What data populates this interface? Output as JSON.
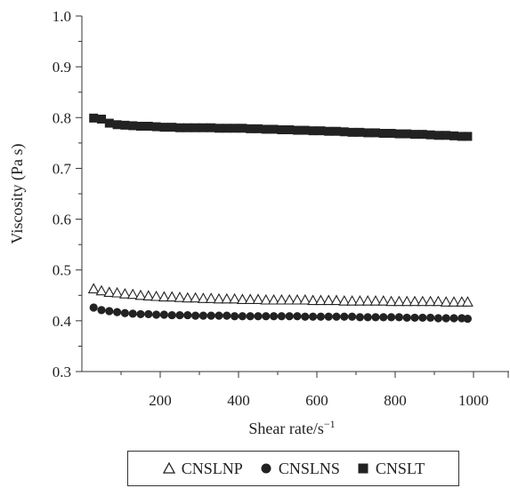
{
  "chart_data": {
    "type": "scatter",
    "title": "",
    "xlabel": "Shear rate/s",
    "xlabel_sup": "−1",
    "ylabel": "Viscosity (Pa s)",
    "xlim": [
      0,
      1000
    ],
    "ylim": [
      0.3,
      1.0
    ],
    "xticks": [
      200,
      400,
      600,
      800,
      1000
    ],
    "yticks": [
      "0.3",
      "0.4",
      "0.5",
      "0.6",
      "0.7",
      "0.8",
      "0.9",
      "1.0"
    ],
    "grid": false,
    "legend_position": "bottom",
    "series": [
      {
        "name": "CNSLNP",
        "marker": "open-triangle",
        "color": "#222222",
        "trendline": true,
        "x": [
          30,
          50,
          70,
          90,
          110,
          130,
          150,
          170,
          190,
          210,
          230,
          250,
          270,
          290,
          310,
          330,
          350,
          370,
          390,
          410,
          430,
          450,
          470,
          490,
          510,
          530,
          550,
          570,
          590,
          610,
          630,
          650,
          670,
          690,
          710,
          730,
          750,
          770,
          790,
          810,
          830,
          850,
          870,
          890,
          910,
          930,
          950,
          970,
          985
        ],
        "y": [
          0.462,
          0.458,
          0.455,
          0.454,
          0.452,
          0.451,
          0.449,
          0.448,
          0.447,
          0.446,
          0.446,
          0.445,
          0.444,
          0.444,
          0.443,
          0.443,
          0.442,
          0.442,
          0.442,
          0.441,
          0.441,
          0.441,
          0.44,
          0.44,
          0.44,
          0.44,
          0.44,
          0.44,
          0.439,
          0.439,
          0.439,
          0.439,
          0.438,
          0.438,
          0.438,
          0.438,
          0.438,
          0.438,
          0.437,
          0.437,
          0.437,
          0.437,
          0.437,
          0.437,
          0.437,
          0.436,
          0.436,
          0.436,
          0.436
        ]
      },
      {
        "name": "CNSLNS",
        "marker": "filled-circle",
        "color": "#222222",
        "x": [
          30,
          50,
          70,
          90,
          110,
          130,
          150,
          170,
          190,
          210,
          230,
          250,
          270,
          290,
          310,
          330,
          350,
          370,
          390,
          410,
          430,
          450,
          470,
          490,
          510,
          530,
          550,
          570,
          590,
          610,
          630,
          650,
          670,
          690,
          710,
          730,
          750,
          770,
          790,
          810,
          830,
          850,
          870,
          890,
          910,
          930,
          950,
          970,
          985
        ],
        "y": [
          0.426,
          0.421,
          0.419,
          0.417,
          0.415,
          0.414,
          0.413,
          0.413,
          0.412,
          0.412,
          0.411,
          0.411,
          0.411,
          0.41,
          0.41,
          0.41,
          0.41,
          0.41,
          0.409,
          0.409,
          0.409,
          0.409,
          0.409,
          0.409,
          0.409,
          0.409,
          0.409,
          0.408,
          0.408,
          0.408,
          0.408,
          0.408,
          0.408,
          0.408,
          0.407,
          0.407,
          0.407,
          0.407,
          0.407,
          0.407,
          0.406,
          0.406,
          0.406,
          0.406,
          0.405,
          0.405,
          0.405,
          0.405,
          0.404
        ]
      },
      {
        "name": "CNSLT",
        "marker": "filled-square",
        "color": "#222222",
        "x": [
          30,
          50,
          70,
          90,
          110,
          130,
          150,
          170,
          190,
          210,
          230,
          250,
          270,
          290,
          310,
          330,
          350,
          370,
          390,
          410,
          430,
          450,
          470,
          490,
          510,
          530,
          550,
          570,
          590,
          610,
          630,
          650,
          670,
          690,
          710,
          730,
          750,
          770,
          790,
          810,
          830,
          850,
          870,
          890,
          910,
          930,
          950,
          970,
          985
        ],
        "y": [
          0.799,
          0.797,
          0.789,
          0.786,
          0.785,
          0.784,
          0.783,
          0.783,
          0.782,
          0.781,
          0.781,
          0.78,
          0.78,
          0.78,
          0.78,
          0.78,
          0.779,
          0.779,
          0.779,
          0.779,
          0.778,
          0.778,
          0.777,
          0.777,
          0.776,
          0.776,
          0.775,
          0.775,
          0.774,
          0.774,
          0.773,
          0.773,
          0.772,
          0.771,
          0.771,
          0.77,
          0.77,
          0.769,
          0.769,
          0.768,
          0.768,
          0.767,
          0.767,
          0.766,
          0.765,
          0.765,
          0.764,
          0.763,
          0.763
        ]
      }
    ]
  }
}
